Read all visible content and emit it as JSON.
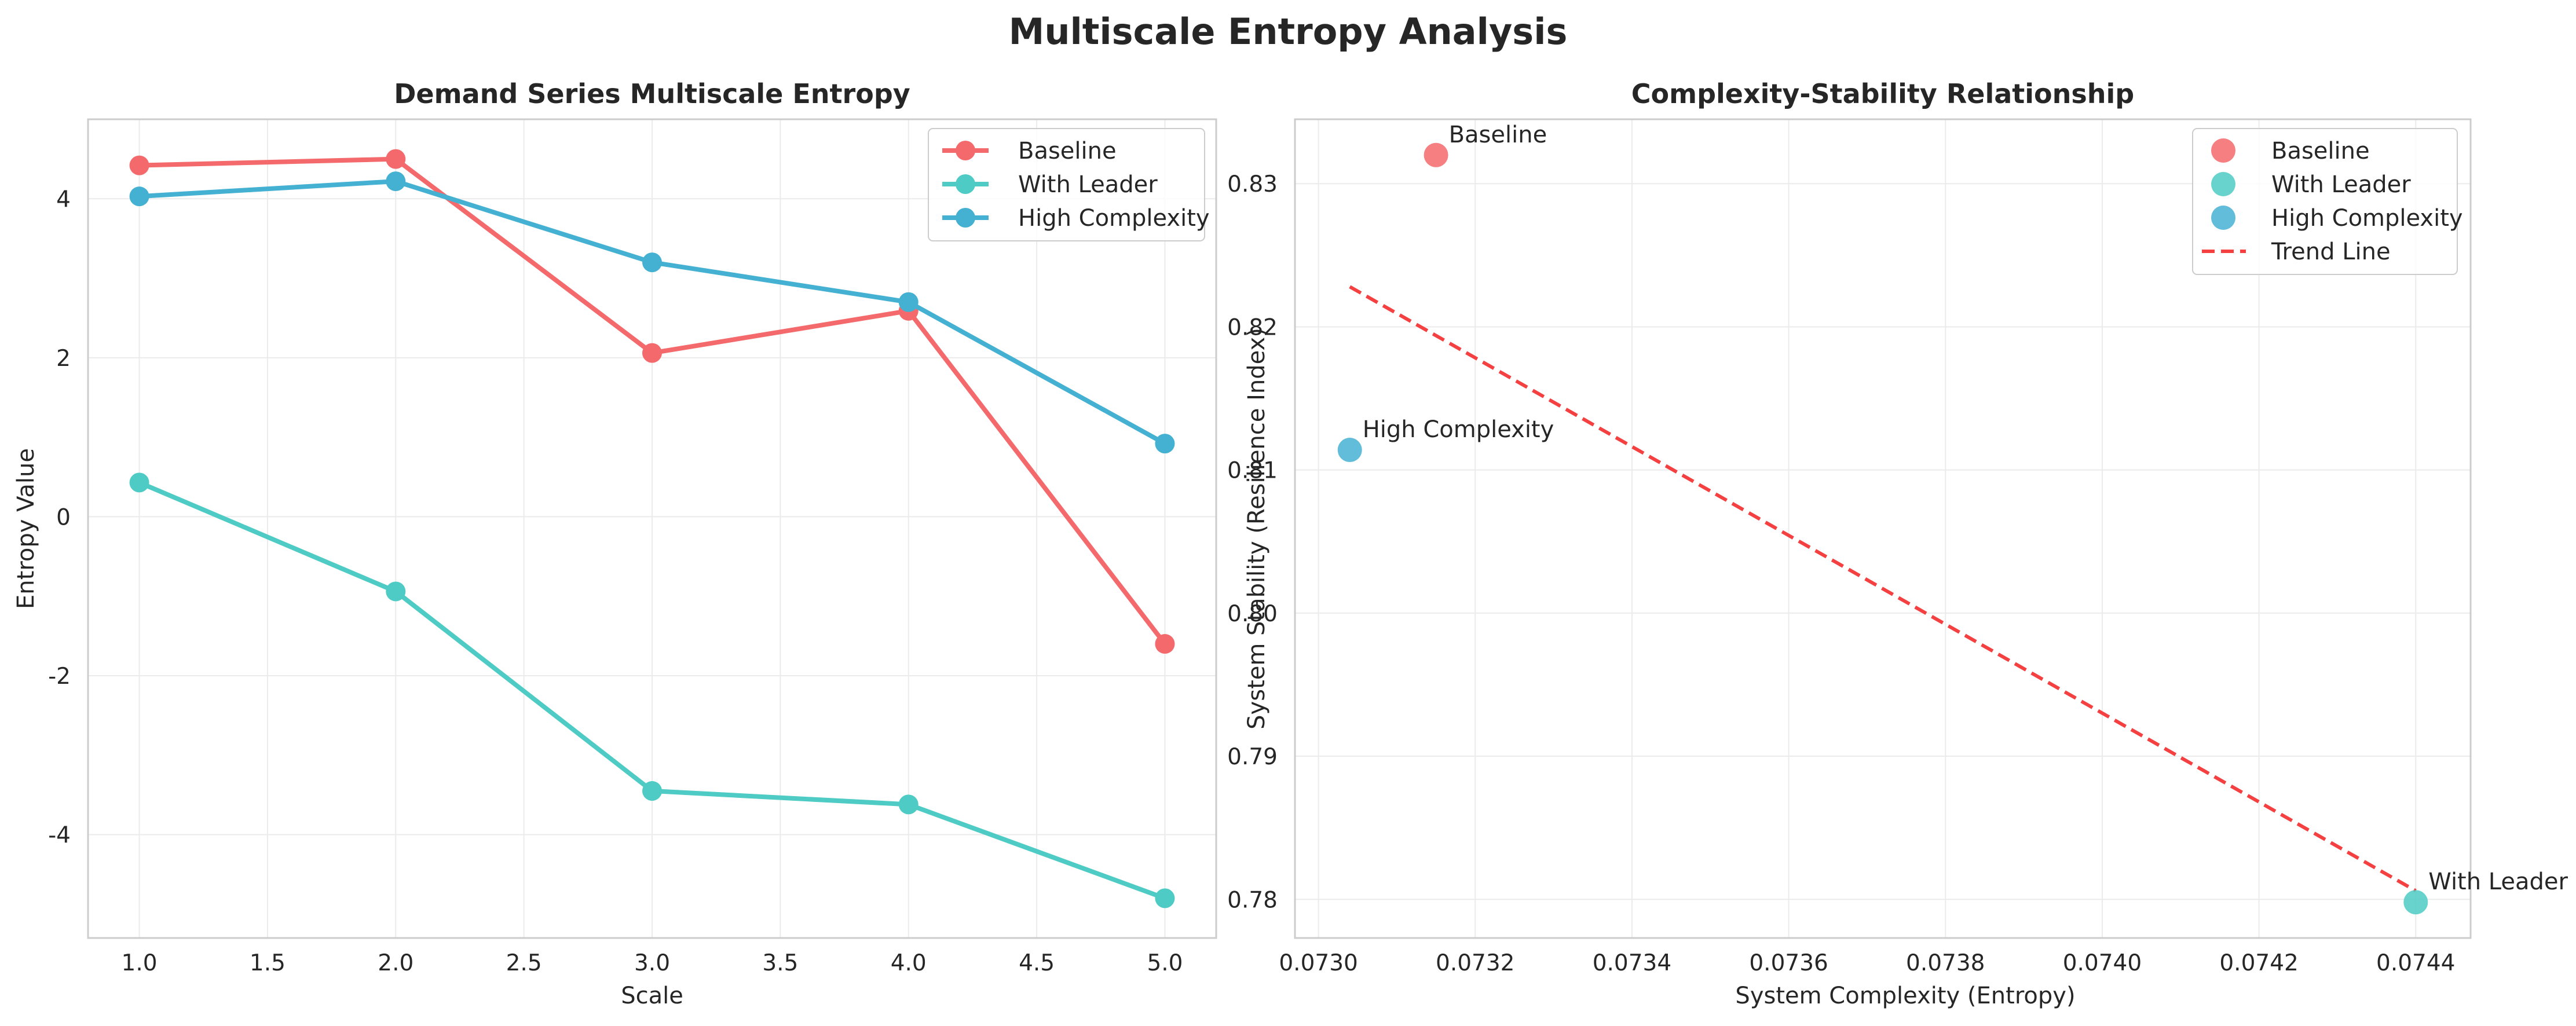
{
  "figure": {
    "title": "Multiscale Entropy Analysis"
  },
  "chart_data": [
    {
      "type": "line",
      "title": "Demand Series Multiscale Entropy",
      "xlabel": "Scale",
      "ylabel": "Entropy Value",
      "xlim": [
        0.8,
        5.2
      ],
      "ylim": [
        -5.3,
        5.0
      ],
      "x": [
        1.0,
        2.0,
        3.0,
        4.0,
        5.0
      ],
      "xticks": [
        "1.0",
        "1.5",
        "2.0",
        "2.5",
        "3.0",
        "3.5",
        "4.0",
        "4.5",
        "5.0"
      ],
      "yticks": [
        "-4",
        "-2",
        "0",
        "2",
        "4"
      ],
      "grid": true,
      "legend_position": "top-right",
      "series": [
        {
          "name": "Baseline",
          "color": "#f4696b",
          "values": [
            4.42,
            4.5,
            2.06,
            2.59,
            -1.6
          ]
        },
        {
          "name": "With Leader",
          "color": "#4ecbc4",
          "values": [
            0.43,
            -0.94,
            -3.45,
            -3.62,
            -4.8
          ]
        },
        {
          "name": "High Complexity",
          "color": "#45b1d2",
          "values": [
            4.03,
            4.22,
            3.2,
            2.7,
            0.92
          ]
        }
      ]
    },
    {
      "type": "scatter",
      "title": "Complexity-Stability Relationship",
      "xlabel": "System Complexity (Entropy)",
      "ylabel": "System Stability (Resilience Index)",
      "xlim": [
        0.07297,
        0.07447
      ],
      "ylim": [
        0.7773,
        0.8345
      ],
      "xticks": [
        "0.0730",
        "0.0732",
        "0.0734",
        "0.0736",
        "0.0738",
        "0.0740",
        "0.0742",
        "0.0744"
      ],
      "yticks": [
        "0.78",
        "0.79",
        "0.80",
        "0.81",
        "0.82",
        "0.83"
      ],
      "grid": true,
      "legend_position": "top-right",
      "points": [
        {
          "name": "Baseline",
          "label": "Baseline",
          "color": "#f4696b",
          "x": 0.07315,
          "y": 0.832
        },
        {
          "name": "With Leader",
          "label": "With Leader",
          "color": "#4ecbc4",
          "x": 0.0744,
          "y": 0.7798
        },
        {
          "name": "High Complexity",
          "label": "High Complexity",
          "color": "#45b1d2",
          "x": 0.07304,
          "y": 0.8114
        }
      ],
      "trend_line": {
        "name": "Trend Line",
        "color": "#f44040",
        "x": [
          0.07304,
          0.0744
        ],
        "y": [
          0.8228,
          0.7806
        ]
      }
    }
  ]
}
